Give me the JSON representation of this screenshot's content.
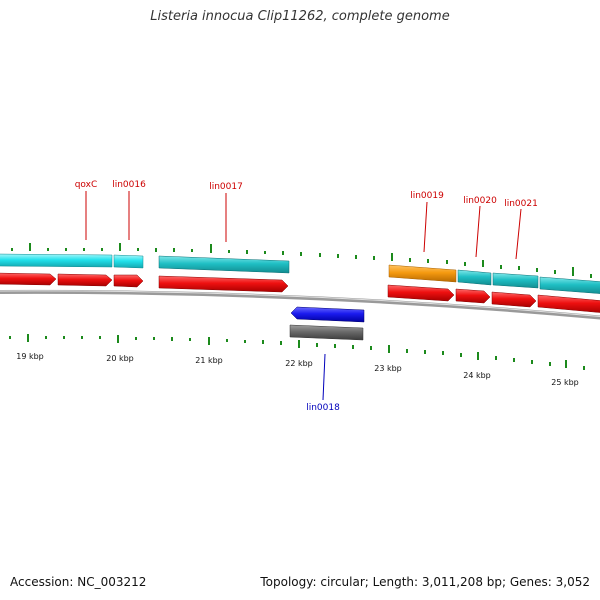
{
  "title": "Listeria innocua Clip11262, complete genome",
  "footer": {
    "accession": "Accession: NC_003212",
    "stats": "Topology: circular; Length: 3,011,208 bp; Genes: 3,052"
  },
  "colors": {
    "cds": "#ee1111",
    "cyan_feature": "#22c8cc",
    "cyan_bright": "#22e8f0",
    "orange_feature": "#f59a10",
    "blue_feature": "#1a1aee",
    "gray_feature": "#666666",
    "backbone": "#8a8a8a",
    "tick": "#1c8a1c",
    "label_red": "#cc0000",
    "label_blue": "#0000bb"
  },
  "scale_labels": [
    "19 kbp",
    "20 kbp",
    "21 kbp",
    "22 kbp",
    "23 kbp",
    "24 kbp",
    "25 kbp"
  ],
  "gene_labels": [
    {
      "name": "qoxC",
      "strand": "forward"
    },
    {
      "name": "lin0016",
      "strand": "forward"
    },
    {
      "name": "lin0017",
      "strand": "forward"
    },
    {
      "name": "lin0019",
      "strand": "forward"
    },
    {
      "name": "lin0020",
      "strand": "forward"
    },
    {
      "name": "lin0021",
      "strand": "forward"
    },
    {
      "name": "lin0018",
      "strand": "reverse"
    }
  ]
}
